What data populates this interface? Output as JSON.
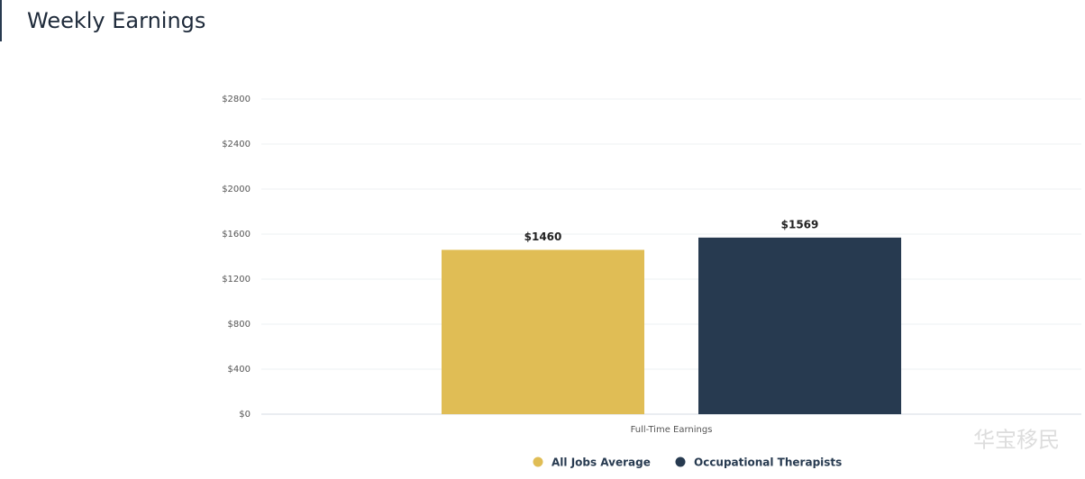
{
  "chart_data": {
    "type": "bar",
    "title": "Weekly Earnings",
    "categories": [
      "Full-Time Earnings"
    ],
    "series": [
      {
        "name": "All Jobs Average",
        "color": "#e0bd55",
        "values": [
          1460
        ],
        "value_labels": [
          "$1460"
        ]
      },
      {
        "name": "Occupational Therapists",
        "color": "#273a50",
        "values": [
          1569
        ],
        "value_labels": [
          "$1569"
        ]
      }
    ],
    "ylim": [
      0,
      2800
    ],
    "yticks": [
      {
        "value": 0,
        "label": "$0"
      },
      {
        "value": 400,
        "label": "$400"
      },
      {
        "value": 800,
        "label": "$800"
      },
      {
        "value": 1200,
        "label": "$1200"
      },
      {
        "value": 1600,
        "label": "$1600"
      },
      {
        "value": 2000,
        "label": "$2000"
      },
      {
        "value": 2400,
        "label": "$2400"
      },
      {
        "value": 2800,
        "label": "$2800"
      }
    ],
    "grid": true,
    "legend": "bottom",
    "watermark": "华宝移民"
  }
}
